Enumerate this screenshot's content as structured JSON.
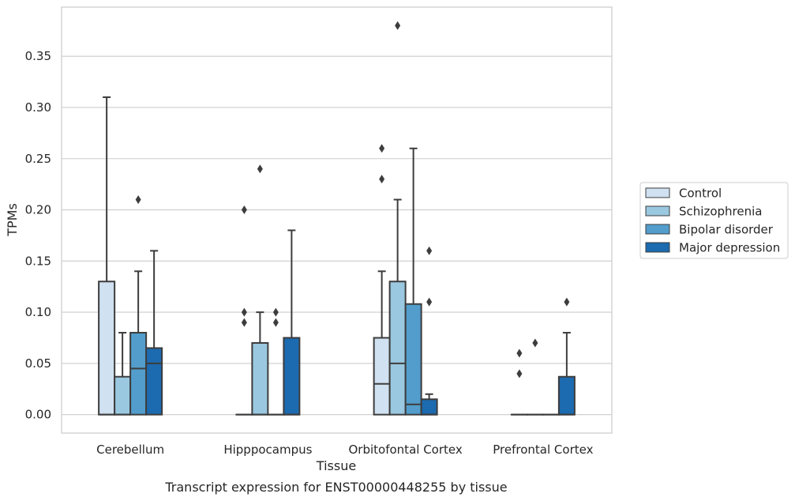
{
  "chart_data": {
    "type": "box",
    "caption": "Transcript expression for ENST00000448255 by tissue",
    "xlabel": "Tissue",
    "ylabel": "TPMs",
    "ylim": [
      -0.018,
      0.398
    ],
    "yticks": [
      0.0,
      0.05,
      0.1,
      0.15,
      0.2,
      0.25,
      0.3,
      0.35
    ],
    "ytick_labels": [
      "0.00",
      "0.05",
      "0.10",
      "0.15",
      "0.20",
      "0.25",
      "0.30",
      "0.35"
    ],
    "grid": true,
    "legend_position": "right",
    "categories": [
      "Cerebellum",
      "Hipppocampus",
      "Orbitofontal Cortex",
      "Prefrontal Cortex"
    ],
    "series": [
      {
        "name": "Control",
        "color": "#d0e1f1",
        "boxes": [
          {
            "q1": 0.0,
            "median": 0.0,
            "q3": 0.13,
            "whisker_low": 0.0,
            "whisker_high": 0.31,
            "outliers": []
          },
          {
            "q1": 0.0,
            "median": 0.0,
            "q3": 0.0,
            "whisker_low": 0.0,
            "whisker_high": 0.0,
            "outliers": [
              0.09,
              0.1,
              0.2
            ]
          },
          {
            "q1": 0.0,
            "median": 0.03,
            "q3": 0.075,
            "whisker_low": 0.0,
            "whisker_high": 0.14,
            "outliers": [
              0.23,
              0.26
            ]
          },
          {
            "q1": 0.0,
            "median": 0.0,
            "q3": 0.0,
            "whisker_low": 0.0,
            "whisker_high": 0.0,
            "outliers": [
              0.04,
              0.06
            ]
          }
        ]
      },
      {
        "name": "Schizophrenia",
        "color": "#9ac8e0",
        "boxes": [
          {
            "q1": 0.0,
            "median": 0.0,
            "q3": 0.037,
            "whisker_low": 0.0,
            "whisker_high": 0.08,
            "outliers": []
          },
          {
            "q1": 0.0,
            "median": 0.0,
            "q3": 0.07,
            "whisker_low": 0.0,
            "whisker_high": 0.1,
            "outliers": [
              0.24
            ]
          },
          {
            "q1": 0.0,
            "median": 0.05,
            "q3": 0.13,
            "whisker_low": 0.0,
            "whisker_high": 0.21,
            "outliers": [
              0.38
            ]
          },
          {
            "q1": 0.0,
            "median": 0.0,
            "q3": 0.0,
            "whisker_low": 0.0,
            "whisker_high": 0.0,
            "outliers": [
              0.07
            ]
          }
        ]
      },
      {
        "name": "Bipolar disorder",
        "color": "#529dcc",
        "boxes": [
          {
            "q1": 0.0,
            "median": 0.045,
            "q3": 0.08,
            "whisker_low": 0.0,
            "whisker_high": 0.14,
            "outliers": [
              0.21
            ]
          },
          {
            "q1": 0.0,
            "median": 0.0,
            "q3": 0.0,
            "whisker_low": 0.0,
            "whisker_high": 0.0,
            "outliers": [
              0.09,
              0.1
            ]
          },
          {
            "q1": 0.0,
            "median": 0.01,
            "q3": 0.108,
            "whisker_low": 0.0,
            "whisker_high": 0.26,
            "outliers": []
          },
          {
            "q1": 0.0,
            "median": 0.0,
            "q3": 0.0,
            "whisker_low": 0.0,
            "whisker_high": 0.0,
            "outliers": []
          }
        ]
      },
      {
        "name": "Major depression",
        "color": "#1c6aaf",
        "boxes": [
          {
            "q1": 0.0,
            "median": 0.05,
            "q3": 0.065,
            "whisker_low": 0.0,
            "whisker_high": 0.16,
            "outliers": []
          },
          {
            "q1": 0.0,
            "median": 0.0,
            "q3": 0.075,
            "whisker_low": 0.0,
            "whisker_high": 0.18,
            "outliers": []
          },
          {
            "q1": 0.0,
            "median": 0.0,
            "q3": 0.015,
            "whisker_low": 0.0,
            "whisker_high": 0.02,
            "outliers": [
              0.11,
              0.16
            ]
          },
          {
            "q1": 0.0,
            "median": 0.0,
            "q3": 0.037,
            "whisker_low": 0.0,
            "whisker_high": 0.08,
            "outliers": [
              0.11
            ]
          }
        ]
      }
    ]
  }
}
